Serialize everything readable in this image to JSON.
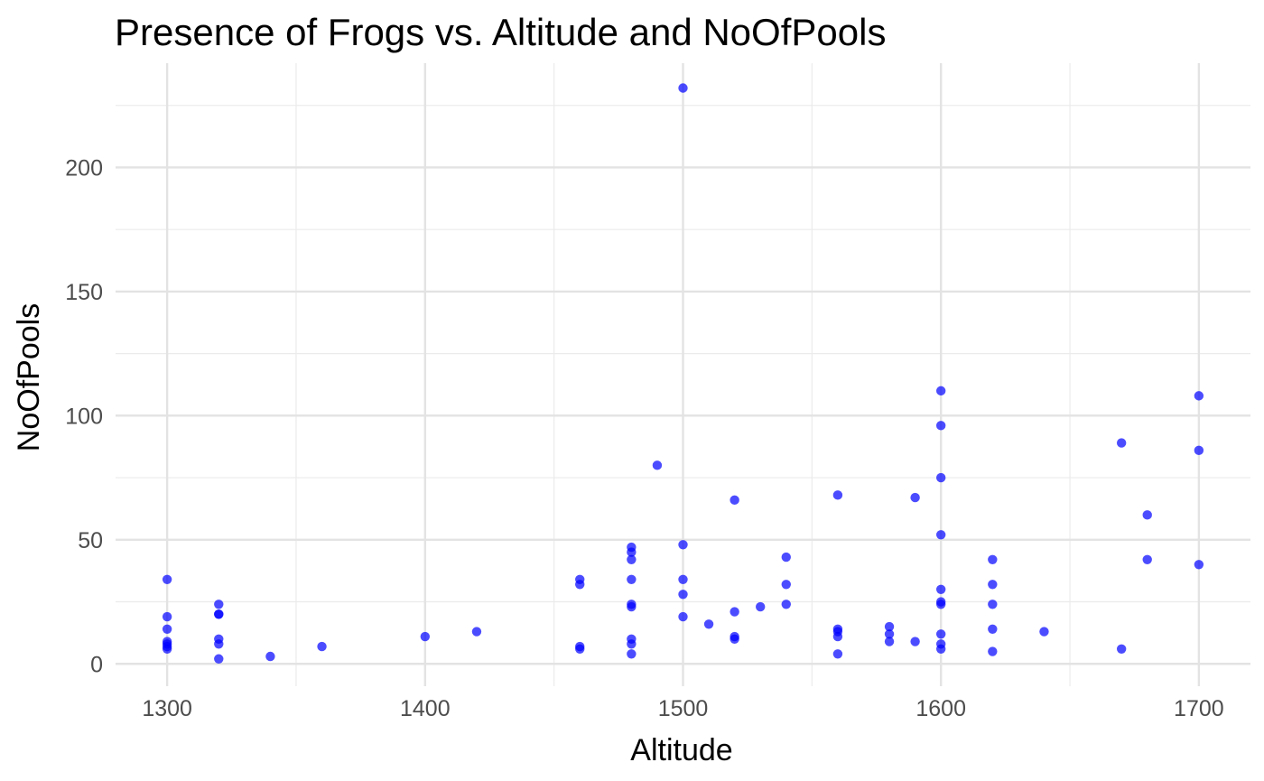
{
  "chart_data": {
    "type": "scatter",
    "title": "Presence of Frogs vs. Altitude and NoOfPools",
    "xlabel": "Altitude",
    "ylabel": "NoOfPools",
    "xlim": [
      1280,
      1720
    ],
    "ylim": [
      -9,
      242
    ],
    "x_ticks": [
      1300,
      1400,
      1500,
      1600,
      1700
    ],
    "y_ticks": [
      0,
      50,
      100,
      150,
      200
    ],
    "x_tick_labels": [
      "1300",
      "1400",
      "1500",
      "1600",
      "1700"
    ],
    "y_tick_labels": [
      "0",
      "50",
      "100",
      "150",
      "200"
    ],
    "grid": true,
    "point_color": "#0000ff",
    "point_opacity": 0.7,
    "points": [
      [
        1300,
        34
      ],
      [
        1300,
        19
      ],
      [
        1300,
        14
      ],
      [
        1300,
        9
      ],
      [
        1300,
        8
      ],
      [
        1300,
        7
      ],
      [
        1300,
        6
      ],
      [
        1320,
        24
      ],
      [
        1320,
        20
      ],
      [
        1320,
        20
      ],
      [
        1320,
        10
      ],
      [
        1320,
        8
      ],
      [
        1320,
        2
      ],
      [
        1340,
        3
      ],
      [
        1360,
        7
      ],
      [
        1400,
        11
      ],
      [
        1420,
        13
      ],
      [
        1460,
        34
      ],
      [
        1460,
        32
      ],
      [
        1460,
        7
      ],
      [
        1460,
        6
      ],
      [
        1480,
        47
      ],
      [
        1480,
        45
      ],
      [
        1480,
        42
      ],
      [
        1480,
        34
      ],
      [
        1480,
        24
      ],
      [
        1480,
        23
      ],
      [
        1480,
        10
      ],
      [
        1480,
        8
      ],
      [
        1480,
        4
      ],
      [
        1490,
        80
      ],
      [
        1500,
        232
      ],
      [
        1500,
        48
      ],
      [
        1500,
        34
      ],
      [
        1500,
        28
      ],
      [
        1500,
        19
      ],
      [
        1510,
        16
      ],
      [
        1520,
        66
      ],
      [
        1520,
        21
      ],
      [
        1520,
        11
      ],
      [
        1520,
        10
      ],
      [
        1530,
        23
      ],
      [
        1540,
        43
      ],
      [
        1540,
        32
      ],
      [
        1540,
        24
      ],
      [
        1560,
        68
      ],
      [
        1560,
        14
      ],
      [
        1560,
        13
      ],
      [
        1560,
        11
      ],
      [
        1560,
        4
      ],
      [
        1580,
        15
      ],
      [
        1580,
        12
      ],
      [
        1580,
        9
      ],
      [
        1590,
        67
      ],
      [
        1590,
        9
      ],
      [
        1600,
        110
      ],
      [
        1600,
        96
      ],
      [
        1600,
        75
      ],
      [
        1600,
        52
      ],
      [
        1600,
        30
      ],
      [
        1600,
        25
      ],
      [
        1600,
        24
      ],
      [
        1600,
        12
      ],
      [
        1600,
        8
      ],
      [
        1600,
        6
      ],
      [
        1620,
        42
      ],
      [
        1620,
        32
      ],
      [
        1620,
        24
      ],
      [
        1620,
        14
      ],
      [
        1620,
        5
      ],
      [
        1640,
        13
      ],
      [
        1670,
        89
      ],
      [
        1670,
        6
      ],
      [
        1680,
        60
      ],
      [
        1680,
        42
      ],
      [
        1700,
        108
      ],
      [
        1700,
        86
      ],
      [
        1700,
        40
      ]
    ]
  }
}
